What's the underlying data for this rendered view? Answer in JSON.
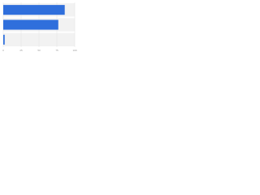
{
  "chart_data": {
    "type": "bar",
    "orientation": "horizontal",
    "categories": [
      null,
      null,
      null
    ],
    "values": [
      86,
      77,
      2
    ],
    "color": "#2f6fdc",
    "xlim": [
      0,
      100
    ],
    "xticks": [
      0,
      25,
      50,
      75,
      100
    ],
    "grid": true
  }
}
